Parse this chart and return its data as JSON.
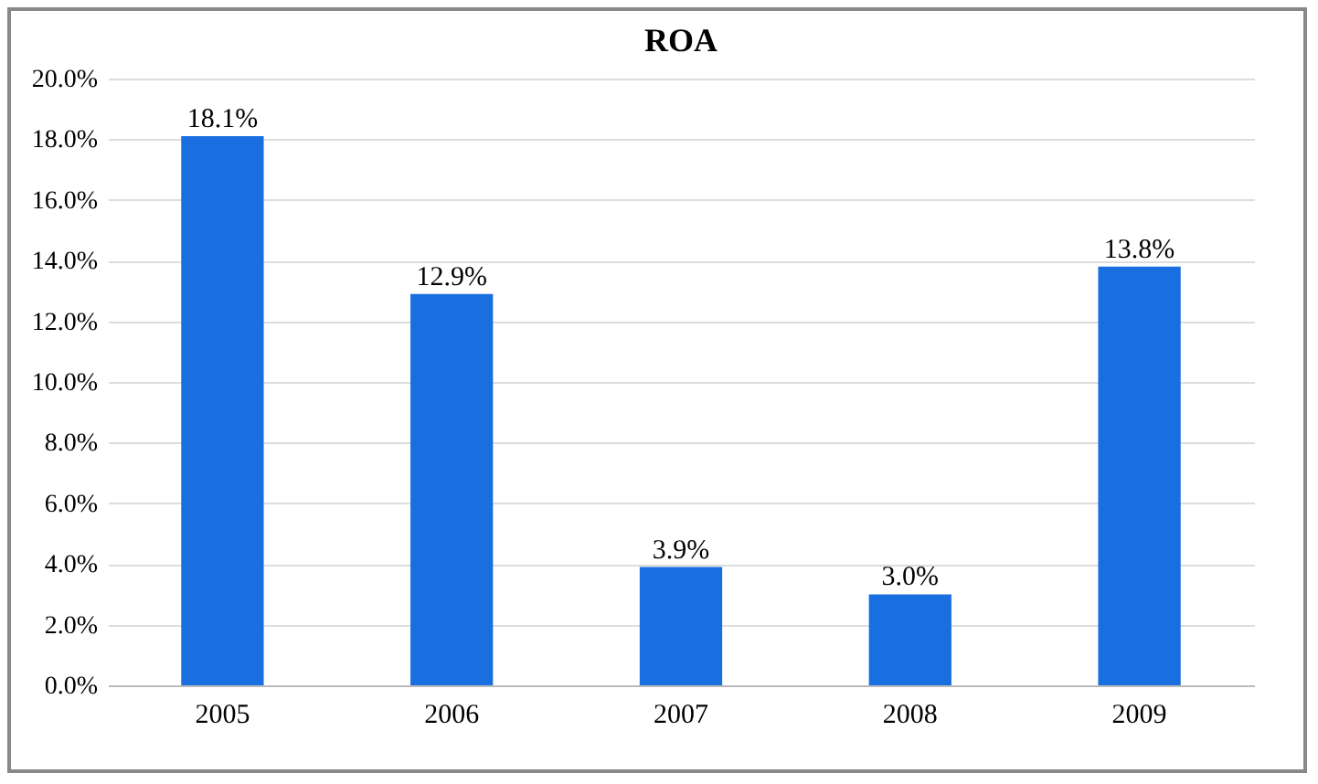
{
  "chart_data": {
    "type": "bar",
    "title": "ROA",
    "categories": [
      "2005",
      "2006",
      "2007",
      "2008",
      "2009"
    ],
    "values": [
      18.1,
      12.9,
      3.9,
      3.0,
      13.8
    ],
    "value_labels": [
      "18.1%",
      "12.9%",
      "3.9%",
      "3.0%",
      "13.8%"
    ],
    "color": "#1a6fe0",
    "ylim": [
      0,
      20
    ],
    "yticks": [
      {
        "value": 0,
        "label": "0.0%"
      },
      {
        "value": 2,
        "label": "2.0%"
      },
      {
        "value": 4,
        "label": "4.0%"
      },
      {
        "value": 6,
        "label": "6.0%"
      },
      {
        "value": 8,
        "label": "8.0%"
      },
      {
        "value": 10,
        "label": "10.0%"
      },
      {
        "value": 12,
        "label": "12.0%"
      },
      {
        "value": 14,
        "label": "14.0%"
      },
      {
        "value": 16,
        "label": "16.0%"
      },
      {
        "value": 18,
        "label": "18.0%"
      },
      {
        "value": 20,
        "label": "20.0%"
      }
    ],
    "grid": "y"
  }
}
